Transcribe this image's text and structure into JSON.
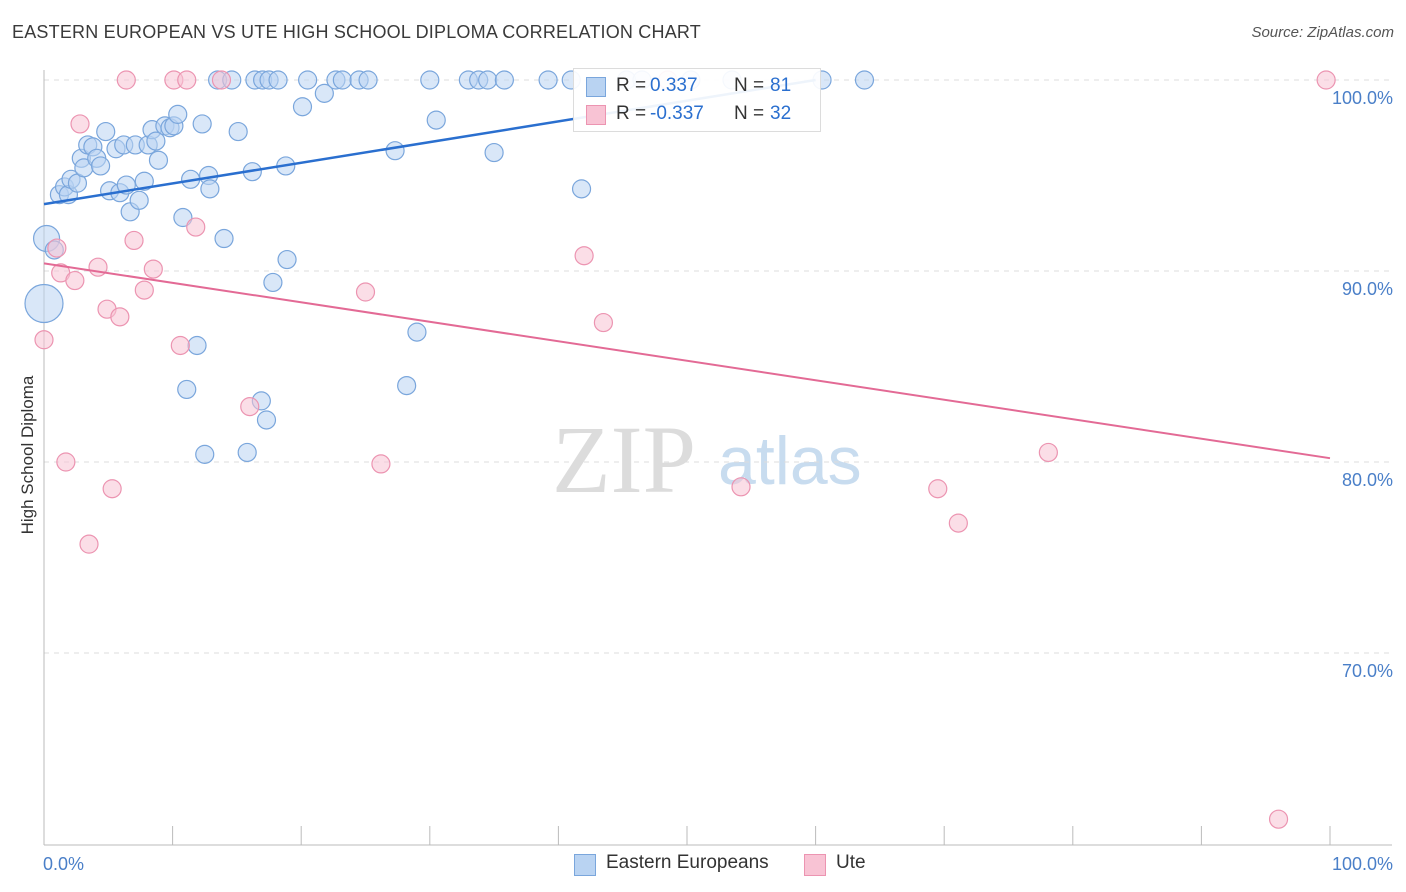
{
  "title": "EASTERN EUROPEAN VS UTE HIGH SCHOOL DIPLOMA CORRELATION CHART",
  "source": "Source: ZipAtlas.com",
  "watermark": {
    "zip": "ZIP",
    "atlas": "atlas"
  },
  "stats": {
    "row1": {
      "r_label": "R =",
      "r_value": "0.337",
      "n_label": "N =",
      "n_value": "81"
    },
    "row2": {
      "r_label": "R =",
      "r_value": "-0.337",
      "n_label": "N =",
      "n_value": "32"
    }
  },
  "legend": {
    "series1": "Eastern Europeans",
    "series2": "Ute"
  },
  "colors": {
    "blue_fill": "#b9d3f2",
    "blue_stroke": "#7aa6dc",
    "blue_line": "#2a6fcf",
    "pink_fill": "#f8c3d4",
    "pink_stroke": "#ec94b1",
    "pink_line": "#e36a95",
    "axis_text": "#4a7fc8",
    "grid": "#dddddd"
  },
  "chart_data": {
    "type": "scatter",
    "title": "EASTERN EUROPEAN VS UTE HIGH SCHOOL DIPLOMA CORRELATION CHART",
    "xlabel": "",
    "ylabel": "High School Diploma",
    "xlim": [
      0,
      100
    ],
    "ylim": [
      60.5,
      101.5
    ],
    "x_tick_labels": [
      "0.0%",
      "100.0%"
    ],
    "y_ticks": [
      {
        "value": 100,
        "label": "100.0%"
      },
      {
        "value": 90,
        "label": "90.0%"
      },
      {
        "value": 80,
        "label": "80.0%"
      },
      {
        "value": 70,
        "label": "70.0%"
      }
    ],
    "grid": true,
    "legend_position": "bottom-center",
    "series": [
      {
        "name": "Eastern Europeans",
        "color": "#7aa6dc",
        "trend": {
          "x": [
            0,
            60
          ],
          "y": [
            93.5,
            100
          ]
        },
        "points": [
          [
            0.0,
            88.3,
            3
          ],
          [
            0.2,
            91.7,
            2
          ],
          [
            0.8,
            91.1,
            1
          ],
          [
            1.2,
            94.0,
            1
          ],
          [
            1.6,
            94.4,
            1
          ],
          [
            1.9,
            94.0,
            1
          ],
          [
            2.1,
            94.8,
            1
          ],
          [
            2.6,
            94.6,
            1
          ],
          [
            2.9,
            95.9,
            1
          ],
          [
            3.1,
            95.4,
            1
          ],
          [
            3.4,
            96.6,
            1
          ],
          [
            3.8,
            96.5,
            1
          ],
          [
            4.1,
            95.9,
            1
          ],
          [
            4.4,
            95.5,
            1
          ],
          [
            4.8,
            97.3,
            1
          ],
          [
            5.1,
            94.2,
            1
          ],
          [
            5.6,
            96.4,
            1
          ],
          [
            5.9,
            94.1,
            1
          ],
          [
            6.2,
            96.6,
            1
          ],
          [
            6.4,
            94.5,
            1
          ],
          [
            6.7,
            93.1,
            1
          ],
          [
            7.1,
            96.6,
            1
          ],
          [
            7.4,
            93.7,
            1
          ],
          [
            7.8,
            94.7,
            1
          ],
          [
            8.1,
            96.6,
            1
          ],
          [
            8.4,
            97.4,
            1
          ],
          [
            8.7,
            96.8,
            1
          ],
          [
            8.9,
            95.8,
            1
          ],
          [
            9.4,
            97.6,
            1
          ],
          [
            9.8,
            97.5,
            1
          ],
          [
            10.1,
            97.6,
            1
          ],
          [
            10.4,
            98.2,
            1
          ],
          [
            10.8,
            92.8,
            1
          ],
          [
            11.1,
            83.8,
            1
          ],
          [
            11.4,
            94.8,
            1
          ],
          [
            11.9,
            86.1,
            1
          ],
          [
            12.3,
            97.7,
            1
          ],
          [
            12.5,
            80.4,
            1
          ],
          [
            12.8,
            95.0,
            1
          ],
          [
            12.9,
            94.3,
            1
          ],
          [
            13.5,
            100,
            1
          ],
          [
            14.0,
            91.7,
            1
          ],
          [
            14.6,
            100,
            1
          ],
          [
            15.1,
            97.3,
            1
          ],
          [
            15.8,
            80.5,
            1
          ],
          [
            16.2,
            95.2,
            1
          ],
          [
            16.4,
            100,
            1
          ],
          [
            16.9,
            83.2,
            1
          ],
          [
            17.0,
            100,
            1
          ],
          [
            17.3,
            82.2,
            1
          ],
          [
            17.5,
            100,
            1
          ],
          [
            17.8,
            89.4,
            1
          ],
          [
            18.2,
            100,
            1
          ],
          [
            18.8,
            95.5,
            1
          ],
          [
            18.9,
            90.6,
            1
          ],
          [
            20.1,
            98.6,
            1
          ],
          [
            20.5,
            100,
            1
          ],
          [
            21.8,
            99.3,
            1
          ],
          [
            22.7,
            100,
            1
          ],
          [
            23.2,
            100,
            1
          ],
          [
            24.5,
            100,
            1
          ],
          [
            25.2,
            100,
            1
          ],
          [
            27.3,
            96.3,
            1
          ],
          [
            28.2,
            84.0,
            1
          ],
          [
            29.0,
            86.8,
            1
          ],
          [
            30.0,
            100,
            1
          ],
          [
            30.5,
            97.9,
            1
          ],
          [
            33.0,
            100,
            1
          ],
          [
            33.8,
            100,
            1
          ],
          [
            34.5,
            100,
            1
          ],
          [
            35.0,
            96.2,
            1
          ],
          [
            35.8,
            100,
            1
          ],
          [
            39.2,
            100,
            1
          ],
          [
            41.0,
            100,
            1
          ],
          [
            45.3,
            100,
            1
          ],
          [
            46.5,
            100,
            1
          ],
          [
            50.3,
            100,
            1
          ],
          [
            53.5,
            100,
            1
          ],
          [
            60.5,
            100,
            1
          ],
          [
            63.8,
            100,
            1
          ],
          [
            41.8,
            94.3,
            1
          ]
        ]
      },
      {
        "name": "Ute",
        "color": "#ec94b1",
        "trend": {
          "x": [
            0,
            100
          ],
          "y": [
            90.4,
            80.2
          ]
        },
        "points": [
          [
            0.0,
            86.4,
            1
          ],
          [
            1.0,
            91.2,
            1
          ],
          [
            1.3,
            89.9,
            1
          ],
          [
            1.7,
            80.0,
            1
          ],
          [
            2.4,
            89.5,
            1
          ],
          [
            2.8,
            97.7,
            1
          ],
          [
            3.5,
            75.7,
            1
          ],
          [
            4.2,
            90.2,
            1
          ],
          [
            4.9,
            88.0,
            1
          ],
          [
            5.3,
            78.6,
            1
          ],
          [
            5.9,
            87.6,
            1
          ],
          [
            6.4,
            100,
            1
          ],
          [
            7.0,
            91.6,
            1
          ],
          [
            7.8,
            89.0,
            1
          ],
          [
            8.5,
            90.1,
            1
          ],
          [
            10.1,
            100,
            1
          ],
          [
            10.6,
            86.1,
            1
          ],
          [
            11.1,
            100,
            1
          ],
          [
            11.8,
            92.3,
            1
          ],
          [
            13.8,
            100,
            1
          ],
          [
            16.0,
            82.9,
            1
          ],
          [
            25.0,
            88.9,
            1
          ],
          [
            26.2,
            79.9,
            1
          ],
          [
            42.0,
            90.8,
            1
          ],
          [
            43.5,
            87.3,
            1
          ],
          [
            48.5,
            100,
            1
          ],
          [
            54.2,
            78.7,
            1
          ],
          [
            69.5,
            78.6,
            1
          ],
          [
            71.1,
            76.8,
            1
          ],
          [
            78.1,
            80.5,
            1
          ],
          [
            96.0,
            61.3,
            1
          ],
          [
            99.7,
            100,
            1
          ]
        ]
      }
    ]
  }
}
